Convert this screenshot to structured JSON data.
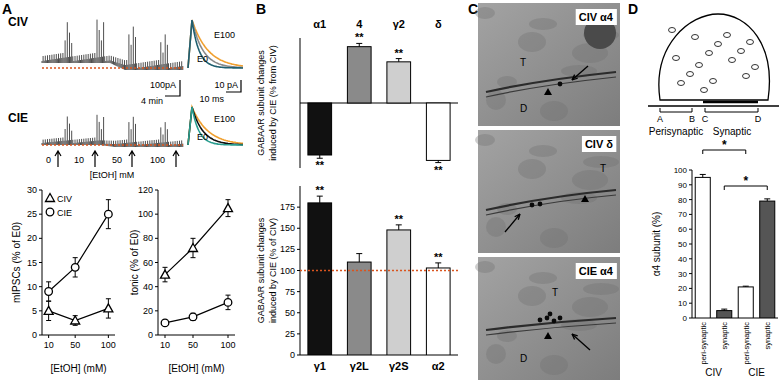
{
  "panel_labels": [
    "A",
    "B",
    "C",
    "D"
  ],
  "panel_a": {
    "conditions": [
      "CIV",
      "CIE"
    ],
    "trace_labels": [
      "E100",
      "E0"
    ],
    "scale_bars": {
      "slow": [
        "100pA",
        "4 min"
      ],
      "fast": [
        "10 pA",
        "10 ms"
      ]
    },
    "ethanol_steps": [
      "0",
      "10",
      "50",
      "100"
    ],
    "ethanol_label": "[EtOH] mM"
  },
  "panel_c": {
    "images": [
      {
        "label": "CIV α4",
        "marks": [
          "T",
          "D"
        ]
      },
      {
        "label": "CIV δ",
        "marks": [
          "T"
        ]
      },
      {
        "label": "CIE α4",
        "marks": [
          "T",
          "D"
        ]
      }
    ]
  },
  "panel_d": {
    "diagram_marks": [
      "A",
      "B",
      "C",
      "D"
    ],
    "regions": [
      "Perisynaptic",
      "Synaptic"
    ]
  },
  "chart_data": [
    {
      "type": "line",
      "y_label": "mIPSCs (% of E0)",
      "x_label": "[EtOH] (mM)",
      "x": [
        10,
        50,
        100
      ],
      "xlim": [
        0,
        110
      ],
      "xticks": [
        10,
        50,
        100
      ],
      "ylim": [
        0,
        30
      ],
      "yticks": [
        0,
        5,
        10,
        15,
        20,
        25,
        30
      ],
      "legend": "upper left",
      "series": [
        {
          "name": "CIV",
          "marker": "triangle",
          "color": "#000000",
          "values": [
            5,
            3,
            5.5
          ],
          "errors": [
            2,
            1,
            2
          ]
        },
        {
          "name": "CIE",
          "marker": "circle",
          "color": "#000000",
          "values": [
            9,
            14,
            25
          ],
          "errors": [
            2,
            2,
            3
          ]
        }
      ]
    },
    {
      "type": "line",
      "y_label": "tonic (% of E0)",
      "x_label": "[EtOH] (mM)",
      "x": [
        10,
        50,
        100
      ],
      "xlim": [
        0,
        110
      ],
      "xticks": [
        10,
        50,
        100
      ],
      "ylim": [
        0,
        120
      ],
      "yticks": [
        0,
        20,
        40,
        60,
        80,
        100,
        120
      ],
      "series": [
        {
          "marker": "triangle",
          "color": "#000000",
          "values": [
            50,
            72,
            105
          ],
          "errors": [
            6,
            8,
            7
          ]
        },
        {
          "marker": "circle",
          "color": "#000000",
          "values": [
            10,
            15,
            27
          ],
          "errors": [
            2,
            3,
            6
          ]
        }
      ]
    },
    {
      "type": "bar",
      "y_label": [
        "GABAAR subunit changes",
        "induced by CIE (% from CIV)"
      ],
      "categories": [
        "α1",
        "4",
        "γ2",
        "δ"
      ],
      "values": [
        -48,
        52,
        38,
        -53
      ],
      "errors": [
        3,
        3,
        3,
        2
      ],
      "colors": [
        "#111111",
        "#8a8a8a",
        "#cfcfcf",
        "#ffffff"
      ],
      "annotations": [
        "**",
        "**",
        "**",
        "**"
      ],
      "ylim": [
        -60,
        60
      ],
      "tick_labels": false
    },
    {
      "type": "bar",
      "y_label": [
        "GABAAR subunit changes",
        "induced by CIE (% of CIV)"
      ],
      "categories": [
        "γ1",
        "γ2L",
        "γ2S",
        "α2"
      ],
      "values": [
        180,
        110,
        148,
        103
      ],
      "errors": [
        8,
        10,
        6,
        6
      ],
      "colors": [
        "#111111",
        "#8a8a8a",
        "#cfcfcf",
        "#ffffff"
      ],
      "annotations": [
        "**",
        null,
        "**",
        "**"
      ],
      "ylim": [
        0,
        200
      ],
      "yticks": [
        0,
        25,
        50,
        75,
        100,
        125,
        150,
        175
      ],
      "reference": 100
    },
    {
      "type": "bar",
      "y_label": "α4 subunit (%)",
      "categories": [
        "peri-synaptic",
        "synaptic",
        "peri-synaptic",
        "synaptic"
      ],
      "values": [
        95,
        5,
        21,
        79
      ],
      "errors": [
        2,
        1,
        0.5,
        1.5
      ],
      "colors": [
        "#ffffff",
        "#555555",
        "#ffffff",
        "#555555"
      ],
      "ylim": [
        0,
        100
      ],
      "yticks": [
        0,
        10,
        20,
        30,
        40,
        50,
        60,
        70,
        80,
        90,
        100
      ],
      "groups": [
        "CIV",
        "CIE"
      ],
      "significance": [
        {
          "between": [
            0,
            2
          ],
          "label": "*"
        },
        {
          "between": [
            1,
            3
          ],
          "label": "*"
        }
      ]
    }
  ]
}
